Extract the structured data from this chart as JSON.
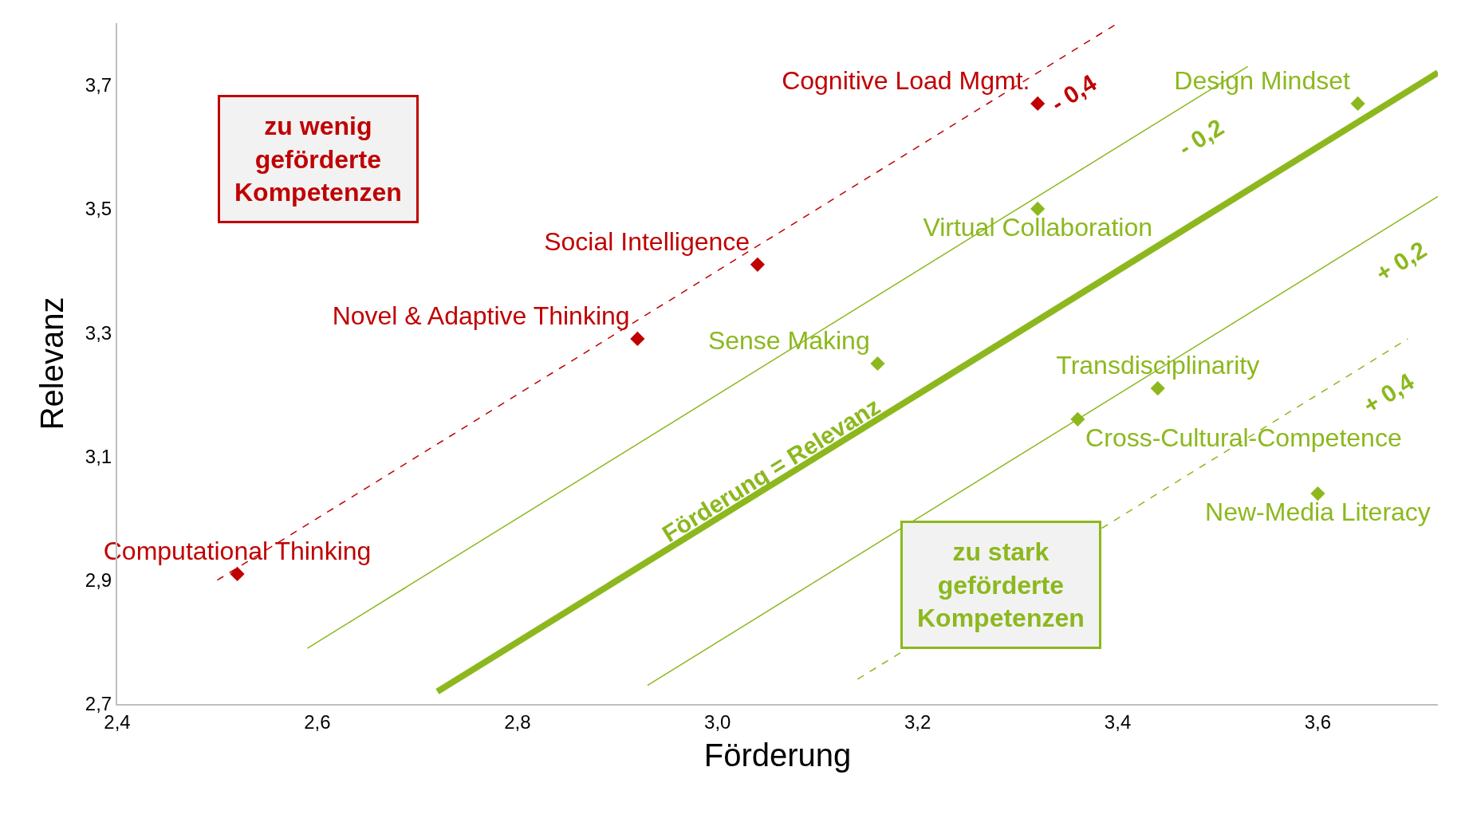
{
  "chart_data": {
    "type": "scatter",
    "xlabel": "Förderung",
    "ylabel": "Relevanz",
    "xlim": [
      2.4,
      3.72
    ],
    "ylim": [
      2.7,
      3.8
    ],
    "xticks": [
      {
        "value": 2.4,
        "label": "2,4"
      },
      {
        "value": 2.6,
        "label": "2,6"
      },
      {
        "value": 2.8,
        "label": "2,8"
      },
      {
        "value": 3.0,
        "label": "3,0"
      },
      {
        "value": 3.2,
        "label": "3,2"
      },
      {
        "value": 3.4,
        "label": "3,4"
      },
      {
        "value": 3.6,
        "label": "3,6"
      }
    ],
    "yticks": [
      {
        "value": 2.7,
        "label": "2,7"
      },
      {
        "value": 2.9,
        "label": "2,9"
      },
      {
        "value": 3.1,
        "label": "3,1"
      },
      {
        "value": 3.3,
        "label": "3,3"
      },
      {
        "value": 3.5,
        "label": "3,5"
      },
      {
        "value": 3.7,
        "label": "3,7"
      }
    ],
    "legend": false,
    "marker": "diamond",
    "series": [
      {
        "name": "Computational Thinking",
        "color": "#c00000",
        "x": [
          2.52
        ],
        "values": [
          2.91
        ]
      },
      {
        "name": "Novel & Adaptive Thinking",
        "color": "#c00000",
        "x": [
          2.92
        ],
        "values": [
          3.29
        ]
      },
      {
        "name": "Social Intelligence",
        "color": "#c00000",
        "x": [
          3.04
        ],
        "values": [
          3.41
        ]
      },
      {
        "name": "Cognitive Load Mgmt.",
        "color": "#c00000",
        "x": [
          3.32
        ],
        "values": [
          3.67
        ]
      },
      {
        "name": "Design Mindset",
        "color": "#8cb81e",
        "x": [
          3.64
        ],
        "values": [
          3.67
        ]
      },
      {
        "name": "Virtual Collaboration",
        "color": "#8cb81e",
        "x": [
          3.32
        ],
        "values": [
          3.5
        ]
      },
      {
        "name": "Sense Making",
        "color": "#8cb81e",
        "x": [
          3.16
        ],
        "values": [
          3.25
        ]
      },
      {
        "name": "Transdisciplinarity",
        "color": "#8cb81e",
        "x": [
          3.44
        ],
        "values": [
          3.21
        ]
      },
      {
        "name": "Cross-Cultural-Competence",
        "color": "#8cb81e",
        "x": [
          3.36
        ],
        "values": [
          3.16
        ]
      },
      {
        "name": "New-Media Literacy",
        "color": "#8cb81e",
        "x": [
          3.6
        ],
        "values": [
          3.04
        ]
      },
      {
        "type": "line",
        "marker": "none",
        "name": "- 0,4",
        "color": "#c00000",
        "line_style": "dashed",
        "x": [
          2.5,
          3.4
        ],
        "values": [
          2.9,
          3.8
        ]
      },
      {
        "type": "line",
        "marker": "none",
        "name": "- 0,2",
        "color": "#8cb81e",
        "line_style": "solid",
        "x": [
          2.59,
          3.53
        ],
        "values": [
          2.79,
          3.73
        ]
      },
      {
        "type": "line",
        "marker": "none",
        "name": "Förderung = Relevanz",
        "color": "#8cb81e",
        "line_style": "solid",
        "x": [
          2.72,
          3.72
        ],
        "values": [
          2.72,
          3.72
        ]
      },
      {
        "type": "line",
        "marker": "none",
        "name": "+ 0,2",
        "color": "#8cb81e",
        "line_style": "solid",
        "x": [
          2.93,
          3.72
        ],
        "values": [
          2.73,
          3.52
        ]
      },
      {
        "type": "line",
        "marker": "none",
        "name": "+ 0,4",
        "color": "#8cb81e",
        "line_style": "dashed",
        "x": [
          3.14,
          3.69
        ],
        "values": [
          2.74,
          3.29
        ]
      }
    ],
    "annotations": [
      "zu wenig\ngeförderte\nKompetenzen",
      "zu stark\ngeförderte\nKompetenzen"
    ]
  }
}
